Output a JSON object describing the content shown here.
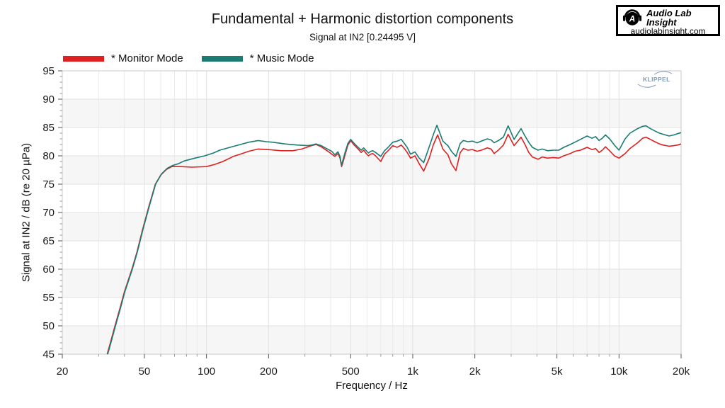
{
  "logo": {
    "line1": "Audio Lab",
    "line2": "Insight",
    "domain": "audiolabinsight.com",
    "icon_letter": "A"
  },
  "watermark": {
    "text": "KLIPPEL",
    "color": "#7d9cbd"
  },
  "chart_data": {
    "type": "line",
    "title": "Fundamental + Harmonic distortion components",
    "subtitle": "Signal at IN2 [0.24495 V]",
    "xlabel": "Frequency / Hz",
    "ylabel": "Signal at IN2 / dB (re 20 µPa)",
    "x_scale": "log",
    "xlim": [
      20,
      20000
    ],
    "ylim": [
      45,
      95
    ],
    "grid": true,
    "legend_position": "top-left",
    "x_ticks": [
      {
        "v": 20,
        "label": "20"
      },
      {
        "v": 50,
        "label": "50"
      },
      {
        "v": 100,
        "label": "100"
      },
      {
        "v": 200,
        "label": "200"
      },
      {
        "v": 500,
        "label": "500"
      },
      {
        "v": 1000,
        "label": "1k"
      },
      {
        "v": 2000,
        "label": "2k"
      },
      {
        "v": 5000,
        "label": "5k"
      },
      {
        "v": 10000,
        "label": "10k"
      },
      {
        "v": 20000,
        "label": "20k"
      }
    ],
    "y_tick_step": 5,
    "y_minor_step": 1,
    "style": {
      "band_fill": "#f6f6f6",
      "grid_color": "#e1e1e1",
      "grid_minor": "#eaeaea",
      "frame_color": "#c8c8c8",
      "tick_color": "#555555",
      "tick_minor_color": "#999999"
    },
    "series": [
      {
        "name": "* Monitor Mode",
        "color": "#e02020",
        "points": [
          [
            33,
            45
          ],
          [
            34.5,
            47.5
          ],
          [
            36,
            50
          ],
          [
            38,
            53
          ],
          [
            40,
            56
          ],
          [
            43.5,
            60
          ],
          [
            46,
            63
          ],
          [
            49,
            67
          ],
          [
            52.5,
            71
          ],
          [
            56.5,
            75
          ],
          [
            60,
            76.6
          ],
          [
            64,
            77.6
          ],
          [
            68,
            78.1
          ],
          [
            75,
            78.1
          ],
          [
            85,
            78
          ],
          [
            100,
            78.1
          ],
          [
            110,
            78.5
          ],
          [
            120,
            79
          ],
          [
            135,
            79.9
          ],
          [
            146,
            80.3
          ],
          [
            160,
            80.8
          ],
          [
            178,
            81.2
          ],
          [
            200,
            81.1
          ],
          [
            230,
            80.9
          ],
          [
            262,
            80.9
          ],
          [
            290,
            81.2
          ],
          [
            323,
            81.8
          ],
          [
            340,
            82
          ],
          [
            360,
            81.6
          ],
          [
            377,
            81.1
          ],
          [
            395,
            80.6
          ],
          [
            405,
            80.3
          ],
          [
            419,
            79.9
          ],
          [
            434,
            80.4
          ],
          [
            444,
            79.6
          ],
          [
            452,
            78.1
          ],
          [
            460,
            79
          ],
          [
            470,
            80.2
          ],
          [
            485,
            81.9
          ],
          [
            500,
            82.7
          ],
          [
            520,
            81.9
          ],
          [
            540,
            81.3
          ],
          [
            562,
            80.6
          ],
          [
            578,
            81
          ],
          [
            595,
            80.4
          ],
          [
            610,
            80
          ],
          [
            625,
            80.3
          ],
          [
            640,
            80.4
          ],
          [
            660,
            80
          ],
          [
            700,
            79
          ],
          [
            730,
            80.3
          ],
          [
            760,
            80.9
          ],
          [
            800,
            81.8
          ],
          [
            840,
            81.5
          ],
          [
            880,
            81.9
          ],
          [
            910,
            81.3
          ],
          [
            940,
            80.6
          ],
          [
            975,
            79.6
          ],
          [
            1000,
            79.8
          ],
          [
            1025,
            80
          ],
          [
            1075,
            78.6
          ],
          [
            1130,
            77.3
          ],
          [
            1200,
            79.5
          ],
          [
            1260,
            82
          ],
          [
            1320,
            83.7
          ],
          [
            1400,
            81.2
          ],
          [
            1480,
            80.2
          ],
          [
            1540,
            78.6
          ],
          [
            1620,
            77.4
          ],
          [
            1700,
            80.6
          ],
          [
            1760,
            81.3
          ],
          [
            1850,
            81
          ],
          [
            1950,
            81.1
          ],
          [
            2050,
            80.8
          ],
          [
            2150,
            81
          ],
          [
            2300,
            81.4
          ],
          [
            2400,
            81.2
          ],
          [
            2480,
            80.4
          ],
          [
            2600,
            81
          ],
          [
            2750,
            81.9
          ],
          [
            2900,
            83.8
          ],
          [
            3100,
            81.8
          ],
          [
            3350,
            83.3
          ],
          [
            3500,
            82
          ],
          [
            3650,
            80.6
          ],
          [
            3800,
            79.8
          ],
          [
            4050,
            79.4
          ],
          [
            4250,
            79.8
          ],
          [
            4500,
            79.6
          ],
          [
            4800,
            79.7
          ],
          [
            5100,
            79.6
          ],
          [
            5400,
            80
          ],
          [
            5800,
            80.4
          ],
          [
            6100,
            80.8
          ],
          [
            6500,
            81
          ],
          [
            7000,
            81.5
          ],
          [
            7400,
            81.1
          ],
          [
            7700,
            81.3
          ],
          [
            8000,
            80.6
          ],
          [
            8300,
            81
          ],
          [
            8600,
            81.6
          ],
          [
            9000,
            80.9
          ],
          [
            9500,
            80
          ],
          [
            10000,
            79.6
          ],
          [
            10700,
            80.4
          ],
          [
            11300,
            81.3
          ],
          [
            12300,
            82.3
          ],
          [
            13000,
            83.1
          ],
          [
            13500,
            83.3
          ],
          [
            14200,
            82.9
          ],
          [
            14900,
            82.5
          ],
          [
            15700,
            82.1
          ],
          [
            16400,
            81.9
          ],
          [
            17500,
            81.7
          ],
          [
            18500,
            81.8
          ],
          [
            19200,
            81.9
          ],
          [
            20000,
            82.1
          ]
        ]
      },
      {
        "name": "* Music Mode",
        "color": "#1b7c74",
        "points": [
          [
            33.2,
            45
          ],
          [
            34.7,
            47.5
          ],
          [
            36.2,
            50
          ],
          [
            38.2,
            53
          ],
          [
            40.2,
            56
          ],
          [
            43.7,
            60
          ],
          [
            46.2,
            63
          ],
          [
            49.2,
            67
          ],
          [
            52.7,
            71
          ],
          [
            56.7,
            75
          ],
          [
            60.5,
            76.8
          ],
          [
            64.5,
            77.8
          ],
          [
            68.5,
            78.3
          ],
          [
            73,
            78.6
          ],
          [
            78,
            79.1
          ],
          [
            88,
            79.6
          ],
          [
            98,
            80
          ],
          [
            108,
            80.5
          ],
          [
            116,
            81
          ],
          [
            130,
            81.5
          ],
          [
            146,
            82
          ],
          [
            160,
            82.4
          ],
          [
            178,
            82.7
          ],
          [
            195,
            82.5
          ],
          [
            210,
            82.4
          ],
          [
            240,
            82.1
          ],
          [
            277,
            81.9
          ],
          [
            310,
            81.8
          ],
          [
            323,
            81.9
          ],
          [
            340,
            82.1
          ],
          [
            360,
            81.8
          ],
          [
            377,
            81.4
          ],
          [
            395,
            81
          ],
          [
            405,
            80.8
          ],
          [
            419,
            80.2
          ],
          [
            434,
            80.7
          ],
          [
            444,
            79.9
          ],
          [
            452,
            78.3
          ],
          [
            460,
            79.4
          ],
          [
            470,
            80.6
          ],
          [
            485,
            82.2
          ],
          [
            500,
            82.9
          ],
          [
            520,
            82.2
          ],
          [
            540,
            81.6
          ],
          [
            562,
            81
          ],
          [
            578,
            81.4
          ],
          [
            595,
            80.9
          ],
          [
            610,
            80.5
          ],
          [
            625,
            80.8
          ],
          [
            640,
            80.9
          ],
          [
            660,
            80.6
          ],
          [
            700,
            79.9
          ],
          [
            730,
            80.9
          ],
          [
            760,
            81.5
          ],
          [
            800,
            82.4
          ],
          [
            840,
            82.6
          ],
          [
            880,
            82.9
          ],
          [
            910,
            82.2
          ],
          [
            940,
            81.5
          ],
          [
            975,
            80.3
          ],
          [
            1000,
            80.5
          ],
          [
            1025,
            80.7
          ],
          [
            1075,
            79.6
          ],
          [
            1130,
            78.8
          ],
          [
            1200,
            81.5
          ],
          [
            1260,
            83.8
          ],
          [
            1310,
            85.4
          ],
          [
            1400,
            82.6
          ],
          [
            1480,
            81.8
          ],
          [
            1540,
            80.8
          ],
          [
            1620,
            79.9
          ],
          [
            1700,
            82.2
          ],
          [
            1760,
            82.7
          ],
          [
            1850,
            82.5
          ],
          [
            1950,
            82.6
          ],
          [
            2050,
            82.3
          ],
          [
            2150,
            82.6
          ],
          [
            2300,
            83
          ],
          [
            2400,
            82.8
          ],
          [
            2480,
            82.3
          ],
          [
            2600,
            82.7
          ],
          [
            2750,
            83.3
          ],
          [
            2900,
            85.3
          ],
          [
            3100,
            82.9
          ],
          [
            3350,
            84.8
          ],
          [
            3500,
            83.5
          ],
          [
            3650,
            82.4
          ],
          [
            3800,
            81.5
          ],
          [
            4050,
            81
          ],
          [
            4250,
            81.2
          ],
          [
            4500,
            80.9
          ],
          [
            4800,
            81
          ],
          [
            5100,
            81
          ],
          [
            5400,
            81.5
          ],
          [
            5800,
            82
          ],
          [
            6100,
            82.4
          ],
          [
            6500,
            82.9
          ],
          [
            7000,
            83.5
          ],
          [
            7400,
            83.1
          ],
          [
            7700,
            83.4
          ],
          [
            8000,
            82.7
          ],
          [
            8300,
            83.1
          ],
          [
            8600,
            83.7
          ],
          [
            9000,
            83
          ],
          [
            9500,
            81.9
          ],
          [
            10000,
            81
          ],
          [
            10700,
            83
          ],
          [
            11300,
            84
          ],
          [
            12300,
            84.8
          ],
          [
            13000,
            85.2
          ],
          [
            13500,
            85.3
          ],
          [
            14200,
            84.8
          ],
          [
            14900,
            84.4
          ],
          [
            15700,
            84
          ],
          [
            16400,
            83.8
          ],
          [
            17500,
            83.5
          ],
          [
            18500,
            83.7
          ],
          [
            19200,
            83.9
          ],
          [
            20000,
            84.1
          ]
        ]
      }
    ]
  }
}
